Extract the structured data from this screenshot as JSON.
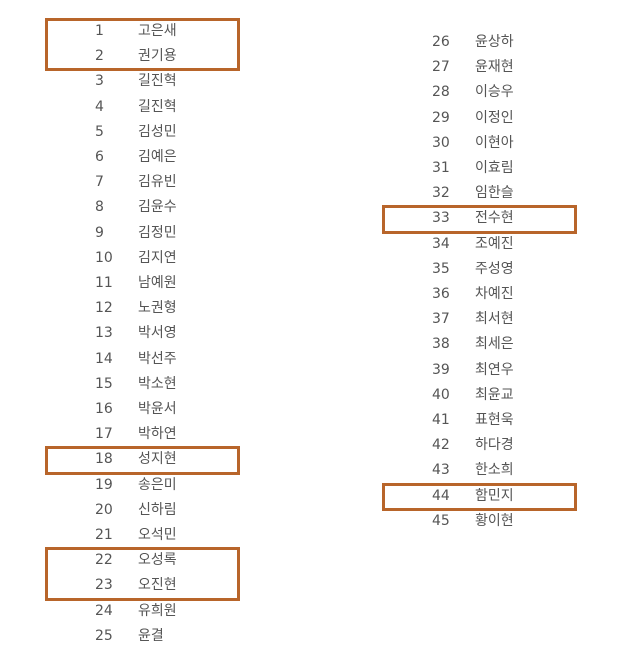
{
  "highlight_color": "#b8652a",
  "text_color": "#555555",
  "columns": [
    {
      "entries": [
        {
          "no": "1",
          "name": "고은새",
          "highlighted": true
        },
        {
          "no": "2",
          "name": "권기용",
          "highlighted": true
        },
        {
          "no": "3",
          "name": "길진혁",
          "highlighted": false
        },
        {
          "no": "4",
          "name": "길진혁",
          "highlighted": false
        },
        {
          "no": "5",
          "name": "김성민",
          "highlighted": false
        },
        {
          "no": "6",
          "name": "김예은",
          "highlighted": false
        },
        {
          "no": "7",
          "name": "김유빈",
          "highlighted": false
        },
        {
          "no": "8",
          "name": "김윤수",
          "highlighted": false
        },
        {
          "no": "9",
          "name": "김정민",
          "highlighted": false
        },
        {
          "no": "10",
          "name": "김지연",
          "highlighted": false
        },
        {
          "no": "11",
          "name": "남예원",
          "highlighted": false
        },
        {
          "no": "12",
          "name": "노권형",
          "highlighted": false
        },
        {
          "no": "13",
          "name": "박서영",
          "highlighted": false
        },
        {
          "no": "14",
          "name": "박선주",
          "highlighted": false
        },
        {
          "no": "15",
          "name": "박소현",
          "highlighted": false
        },
        {
          "no": "16",
          "name": "박윤서",
          "highlighted": false
        },
        {
          "no": "17",
          "name": "박하연",
          "highlighted": false
        },
        {
          "no": "18",
          "name": "성지현",
          "highlighted": true
        },
        {
          "no": "19",
          "name": "송은미",
          "highlighted": false
        },
        {
          "no": "20",
          "name": "신하림",
          "highlighted": false
        },
        {
          "no": "21",
          "name": "오석민",
          "highlighted": false
        },
        {
          "no": "22",
          "name": "오성록",
          "highlighted": true
        },
        {
          "no": "23",
          "name": "오진현",
          "highlighted": true
        },
        {
          "no": "24",
          "name": "유희원",
          "highlighted": false
        },
        {
          "no": "25",
          "name": "윤결",
          "highlighted": false
        }
      ]
    },
    {
      "entries": [
        {
          "no": "26",
          "name": "윤상하",
          "highlighted": false
        },
        {
          "no": "27",
          "name": "윤재현",
          "highlighted": false
        },
        {
          "no": "28",
          "name": "이승우",
          "highlighted": false
        },
        {
          "no": "29",
          "name": "이정인",
          "highlighted": false
        },
        {
          "no": "30",
          "name": "이현아",
          "highlighted": false
        },
        {
          "no": "31",
          "name": "이효림",
          "highlighted": false
        },
        {
          "no": "32",
          "name": "임한슬",
          "highlighted": false
        },
        {
          "no": "33",
          "name": "전수현",
          "highlighted": true
        },
        {
          "no": "34",
          "name": "조예진",
          "highlighted": false
        },
        {
          "no": "35",
          "name": "주성영",
          "highlighted": false
        },
        {
          "no": "36",
          "name": "차예진",
          "highlighted": false
        },
        {
          "no": "37",
          "name": "최서현",
          "highlighted": false
        },
        {
          "no": "38",
          "name": "최세은",
          "highlighted": false
        },
        {
          "no": "39",
          "name": "최연우",
          "highlighted": false
        },
        {
          "no": "40",
          "name": "최윤교",
          "highlighted": false
        },
        {
          "no": "41",
          "name": "표현욱",
          "highlighted": false
        },
        {
          "no": "42",
          "name": "하다경",
          "highlighted": false
        },
        {
          "no": "43",
          "name": "한소희",
          "highlighted": false
        },
        {
          "no": "44",
          "name": "함민지",
          "highlighted": true
        },
        {
          "no": "45",
          "name": "황이현",
          "highlighted": false
        }
      ]
    }
  ]
}
